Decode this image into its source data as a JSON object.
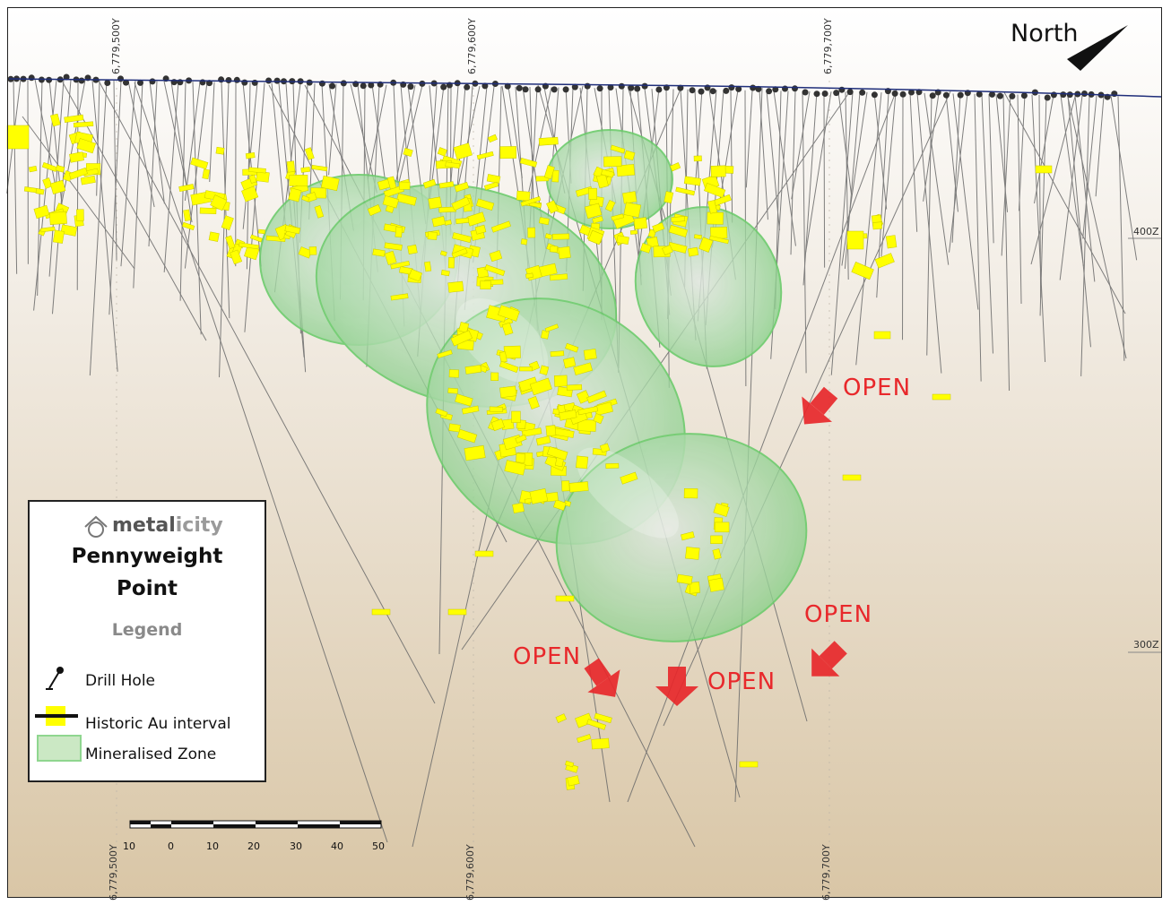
{
  "map": {
    "north_label": "North",
    "northings": [
      "6,779,500Y",
      "6,779,600Y",
      "6,779,700Y"
    ],
    "elevations": [
      "400Z",
      "300Z"
    ],
    "open_label": "OPEN",
    "scale_ticks": [
      "10",
      "0",
      "10",
      "20",
      "30",
      "40",
      "50"
    ]
  },
  "legend": {
    "logo_dark": "metal",
    "logo_light": "icity",
    "title_line1": "Pennyweight",
    "title_line2": "Point",
    "heading": "Legend",
    "drill_hole": "Drill Hole",
    "historic_au": "Historic Au interval",
    "mineralised": "Mineralised Zone"
  },
  "colors": {
    "au_interval": "#ffff00",
    "mineralised_zone": "#8fe08f",
    "open_arrow": "#e8282b",
    "topography": "#1f2e7a"
  },
  "icons": [
    "house-logo-icon",
    "drill-hole-icon",
    "north-arrow-icon",
    "open-arrow-icon"
  ]
}
